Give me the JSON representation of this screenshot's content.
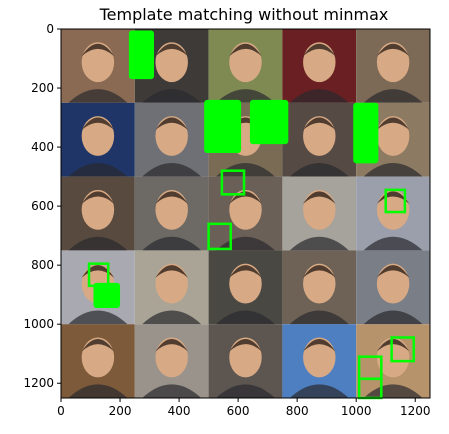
{
  "chart_data": {
    "type": "image",
    "title": "Template matching without minmax",
    "xlim": [
      0,
      1250
    ],
    "ylim": [
      1250,
      0
    ],
    "xticks": [
      0,
      200,
      400,
      600,
      800,
      1000,
      1200
    ],
    "yticks": [
      0,
      200,
      400,
      600,
      800,
      1000,
      1200
    ],
    "xtick_labels": [
      "0",
      "200",
      "400",
      "600",
      "800",
      "1000",
      "1200"
    ],
    "ytick_labels": [
      "0",
      "200",
      "400",
      "600",
      "800",
      "1000",
      "1200"
    ],
    "grid": false,
    "image": {
      "description_tiles": "5x5 mosaic of face photographs",
      "rows": 5,
      "cols": 5,
      "tile_size": 250
    },
    "detections": {
      "color": "#00ff00",
      "filled_regions": [
        {
          "x0": 230,
          "y0": 5,
          "x1": 315,
          "y1": 170
        },
        {
          "x0": 485,
          "y0": 240,
          "x1": 610,
          "y1": 420
        },
        {
          "x0": 640,
          "y0": 240,
          "x1": 770,
          "y1": 390
        },
        {
          "x0": 990,
          "y0": 250,
          "x1": 1075,
          "y1": 455
        },
        {
          "x0": 110,
          "y0": 860,
          "x1": 200,
          "y1": 945
        }
      ],
      "outline_boxes": [
        {
          "x0": 545,
          "y0": 480,
          "x1": 620,
          "y1": 560
        },
        {
          "x0": 1100,
          "y0": 545,
          "x1": 1165,
          "y1": 620
        },
        {
          "x0": 500,
          "y0": 660,
          "x1": 575,
          "y1": 745
        },
        {
          "x0": 95,
          "y0": 795,
          "x1": 160,
          "y1": 870
        },
        {
          "x0": 1120,
          "y0": 1045,
          "x1": 1195,
          "y1": 1125
        },
        {
          "x0": 1010,
          "y0": 1110,
          "x1": 1085,
          "y1": 1185
        },
        {
          "x0": 1010,
          "y0": 1185,
          "x1": 1085,
          "y1": 1250
        }
      ]
    },
    "tile_colors": [
      [
        "#8a6a52",
        "#3e3a38",
        "#7f8a52",
        "#6a1f22",
        "#7d6a56"
      ],
      [
        "#1f3568",
        "#6f7076",
        "#7a6b55",
        "#564a44",
        "#8c7a62"
      ],
      [
        "#584a3e",
        "#6d6a66",
        "#6b6057",
        "#a6a29c",
        "#9a9fab"
      ],
      [
        "#a9aab1",
        "#a9a495",
        "#4a4843",
        "#6d6255",
        "#7a7e86"
      ],
      [
        "#7c5a3a",
        "#9a938b",
        "#5d5550",
        "#4e7fc0",
        "#b7936b"
      ]
    ],
    "face_color": "#d7a984"
  }
}
